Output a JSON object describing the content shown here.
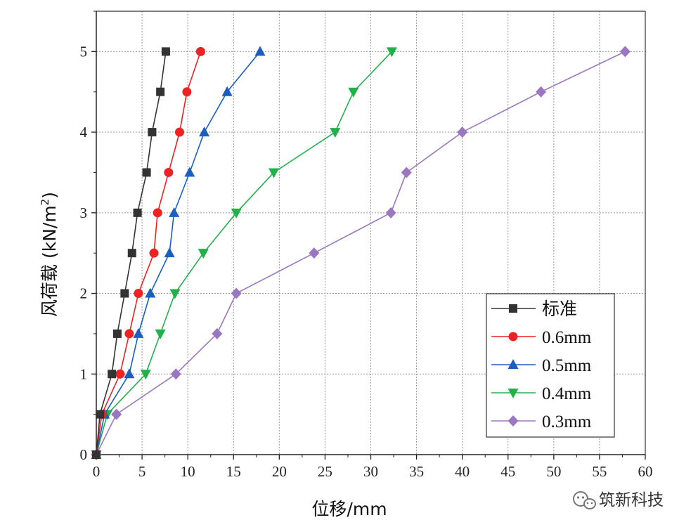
{
  "chart_data": {
    "type": "line",
    "title": "",
    "xlabel": "位移/mm",
    "ylabel_main": "风荷载 (kN/m",
    "ylabel_sup": "2",
    "ylabel_close": ")",
    "xlim": [
      0,
      60
    ],
    "ylim": [
      0,
      5.5
    ],
    "x_ticks": [
      0,
      5,
      10,
      15,
      20,
      25,
      30,
      35,
      40,
      45,
      50,
      55,
      60
    ],
    "y_ticks": [
      0,
      1,
      2,
      3,
      4,
      5
    ],
    "grid": true,
    "legend_position": "lower-right",
    "series": [
      {
        "name": "标准",
        "color": "#333333",
        "marker": "square",
        "points": [
          [
            0,
            0
          ],
          [
            0.4,
            0.5
          ],
          [
            1.7,
            1.0
          ],
          [
            2.3,
            1.5
          ],
          [
            3.1,
            2.0
          ],
          [
            3.9,
            2.5
          ],
          [
            4.5,
            3.0
          ],
          [
            5.5,
            3.5
          ],
          [
            6.1,
            4.0
          ],
          [
            7.0,
            4.5
          ],
          [
            7.6,
            5.0
          ]
        ]
      },
      {
        "name": "0.6mm",
        "color": "#ee2222",
        "marker": "circle",
        "points": [
          [
            0,
            0
          ],
          [
            0.6,
            0.5
          ],
          [
            2.6,
            1.0
          ],
          [
            3.6,
            1.5
          ],
          [
            4.6,
            2.0
          ],
          [
            6.3,
            2.5
          ],
          [
            6.7,
            3.0
          ],
          [
            7.9,
            3.5
          ],
          [
            9.1,
            4.0
          ],
          [
            9.9,
            4.5
          ],
          [
            11.4,
            5.0
          ]
        ]
      },
      {
        "name": "0.5mm",
        "color": "#1a5fbf",
        "marker": "triangle-up",
        "points": [
          [
            0,
            0
          ],
          [
            0.9,
            0.5
          ],
          [
            3.6,
            1.0
          ],
          [
            4.6,
            1.5
          ],
          [
            5.9,
            2.0
          ],
          [
            8.0,
            2.5
          ],
          [
            8.5,
            3.0
          ],
          [
            10.2,
            3.5
          ],
          [
            11.8,
            4.0
          ],
          [
            14.3,
            4.5
          ],
          [
            17.9,
            5.0
          ]
        ]
      },
      {
        "name": "0.4mm",
        "color": "#22b04b",
        "marker": "triangle-down",
        "points": [
          [
            0,
            0
          ],
          [
            1.2,
            0.5
          ],
          [
            5.4,
            1.0
          ],
          [
            7.0,
            1.5
          ],
          [
            8.6,
            2.0
          ],
          [
            11.7,
            2.5
          ],
          [
            15.3,
            3.0
          ],
          [
            19.4,
            3.5
          ],
          [
            26.1,
            4.0
          ],
          [
            28.1,
            4.5
          ],
          [
            32.3,
            5.0
          ]
        ]
      },
      {
        "name": "0.3mm",
        "color": "#9b77c2",
        "marker": "diamond",
        "points": [
          [
            0,
            0
          ],
          [
            2.2,
            0.5
          ],
          [
            8.7,
            1.0
          ],
          [
            13.2,
            1.5
          ],
          [
            15.3,
            2.0
          ],
          [
            23.8,
            2.5
          ],
          [
            32.2,
            3.0
          ],
          [
            33.9,
            3.5
          ],
          [
            40.0,
            4.0
          ],
          [
            48.6,
            4.5
          ],
          [
            57.8,
            5.0
          ]
        ]
      }
    ]
  },
  "watermark": {
    "icon": "wechat-icon",
    "text": "筑新科技"
  }
}
